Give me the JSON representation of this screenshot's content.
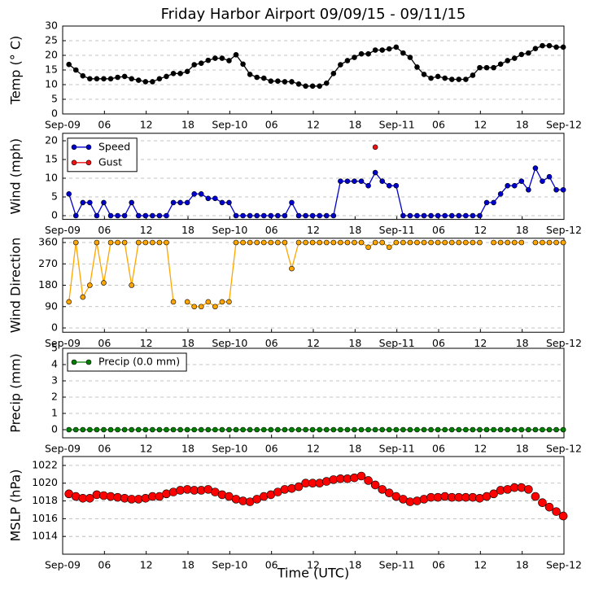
{
  "chart_data": [
    {
      "type": "line",
      "title": "Friday Harbor Airport 09/09/15 - 09/11/15",
      "ylabel": "Temp (° C)",
      "x": [
        0.9,
        1.9,
        2.9,
        3.9,
        4.9,
        5.9,
        6.9,
        7.9,
        8.9,
        9.9,
        10.9,
        11.9,
        12.9,
        13.9,
        14.9,
        15.9,
        16.9,
        17.9,
        18.9,
        19.9,
        20.9,
        21.9,
        22.9,
        23.9,
        24.9,
        25.9,
        26.9,
        27.9,
        28.9,
        29.9,
        30.9,
        31.9,
        32.9,
        33.9,
        34.9,
        35.9,
        36.9,
        37.9,
        38.9,
        39.9,
        40.9,
        41.9,
        42.9,
        43.9,
        44.9,
        45.9,
        46.9,
        47.9,
        48.9,
        49.9,
        50.9,
        51.9,
        52.9,
        53.9,
        54.9,
        55.9,
        56.9,
        57.9,
        58.9,
        59.9,
        60.9,
        61.9,
        62.9,
        63.9,
        64.9,
        65.9,
        66.9,
        67.9,
        68.9,
        69.9,
        70.9,
        71.9
      ],
      "series": [
        {
          "color": "#000000",
          "line": true,
          "marker_size": 3,
          "values": [
            16.9,
            15,
            13,
            12,
            12,
            12,
            12,
            12.5,
            12.8,
            12,
            11.5,
            11,
            11,
            12,
            12.8,
            13.8,
            13.8,
            14.5,
            16.8,
            17.3,
            18.3,
            19,
            19,
            18.2,
            20.2,
            17,
            13.5,
            12.5,
            12.2,
            11.2,
            11.2,
            11,
            11,
            10.2,
            9.5,
            9.5,
            9.5,
            10.5,
            13.8,
            16.8,
            18.2,
            19.3,
            20.5,
            20.5,
            21.8,
            21.8,
            22.2,
            22.8,
            20.8,
            19.3,
            16,
            13.5,
            12.2,
            12.8,
            12.2,
            11.8,
            11.8,
            11.8,
            13.2,
            15.8,
            15.8,
            15.8,
            17,
            18.2,
            19,
            20.3,
            20.8,
            22.3,
            23.3,
            23.3,
            22.8,
            22.8
          ]
        }
      ],
      "xlim": [
        0,
        72
      ],
      "xticks": [
        {
          "value": 0,
          "label": "Sep-09"
        },
        {
          "value": 6,
          "label": "06"
        },
        12,
        18,
        {
          "value": 24,
          "label": "Sep-10"
        },
        {
          "value": 30,
          "label": "06"
        },
        {
          "value": 36,
          "label": "12"
        },
        {
          "value": 42,
          "label": "18"
        },
        {
          "value": 48,
          "label": "Sep-11"
        },
        {
          "value": 54,
          "label": "06"
        },
        {
          "value": 60,
          "label": "12"
        },
        {
          "value": 66,
          "label": "18"
        },
        {
          "value": 72,
          "label": "Sep-12"
        }
      ],
      "ylim": [
        0,
        30
      ],
      "yticks": [
        0,
        5,
        10,
        15,
        20,
        25,
        30
      ],
      "grid": "y"
    },
    {
      "type": "line",
      "ylabel": "Wind (mph)",
      "x": [
        0.9,
        1.9,
        2.9,
        3.9,
        4.9,
        5.9,
        6.9,
        7.9,
        8.9,
        9.9,
        10.9,
        11.9,
        12.9,
        13.9,
        14.9,
        15.9,
        16.9,
        17.9,
        18.9,
        19.9,
        20.9,
        21.9,
        22.9,
        23.9,
        24.9,
        25.9,
        26.9,
        27.9,
        28.9,
        29.9,
        30.9,
        31.9,
        32.9,
        33.9,
        34.9,
        35.9,
        36.9,
        37.9,
        38.9,
        39.9,
        40.9,
        41.9,
        42.9,
        43.9,
        44.9,
        45.9,
        46.9,
        47.9,
        48.9,
        49.9,
        50.9,
        51.9,
        52.9,
        53.9,
        54.9,
        55.9,
        56.9,
        57.9,
        58.9,
        59.9,
        60.9,
        61.9,
        62.9,
        63.9,
        64.9,
        65.9,
        66.9,
        67.9,
        68.9,
        69.9,
        70.9,
        71.9
      ],
      "series": [
        {
          "name": "Speed",
          "color": "#0000cc",
          "line": true,
          "marker_size": 3,
          "values": [
            5.8,
            0,
            3.5,
            3.5,
            0,
            3.5,
            0,
            0,
            0,
            3.5,
            0,
            0,
            0,
            0,
            0,
            3.5,
            3.5,
            3.5,
            5.8,
            5.8,
            4.6,
            4.6,
            3.5,
            3.5,
            0,
            0,
            0,
            0,
            0,
            0,
            0,
            0,
            3.5,
            0,
            0,
            0,
            0,
            0,
            0,
            9.2,
            9.2,
            9.2,
            9.2,
            8,
            11.5,
            9.2,
            8,
            8,
            0,
            0,
            0,
            0,
            0,
            0,
            0,
            0,
            0,
            0,
            0,
            0,
            3.5,
            3.5,
            5.8,
            8,
            8,
            9.2,
            6.9,
            12.7,
            9.2,
            10.4,
            6.9,
            6.9
          ]
        },
        {
          "name": "Gust",
          "color": "#ee1111",
          "line": false,
          "marker_size": 3,
          "values": [
            null,
            null,
            null,
            null,
            null,
            null,
            null,
            null,
            null,
            null,
            null,
            null,
            null,
            null,
            null,
            null,
            null,
            null,
            null,
            null,
            null,
            null,
            null,
            null,
            null,
            null,
            null,
            null,
            null,
            null,
            null,
            null,
            null,
            null,
            null,
            null,
            null,
            null,
            null,
            null,
            null,
            null,
            null,
            null,
            18.3,
            null,
            null,
            null,
            null,
            null,
            null,
            null,
            null,
            null,
            null,
            null,
            null,
            null,
            null,
            null,
            null,
            null,
            null,
            null,
            null,
            null,
            null,
            null,
            null,
            null,
            null,
            null
          ]
        }
      ],
      "legend": "upper left",
      "xlim": [
        0,
        72
      ],
      "xticks": [
        {
          "value": 0,
          "label": "Sep-09"
        },
        {
          "value": 6,
          "label": "06"
        },
        12,
        18,
        {
          "value": 24,
          "label": "Sep-10"
        },
        {
          "value": 30,
          "label": "06"
        },
        {
          "value": 36,
          "label": "12"
        },
        {
          "value": 42,
          "label": "18"
        },
        {
          "value": 48,
          "label": "Sep-11"
        },
        {
          "value": 54,
          "label": "06"
        },
        {
          "value": 60,
          "label": "12"
        },
        {
          "value": 66,
          "label": "18"
        },
        {
          "value": 72,
          "label": "Sep-12"
        }
      ],
      "ylim": [
        -1,
        22
      ],
      "yticks": [
        0,
        5,
        10,
        15,
        20
      ],
      "grid": "y"
    },
    {
      "type": "line",
      "ylabel": "Wind Direction",
      "x": [
        0.9,
        1.9,
        2.9,
        3.9,
        4.9,
        5.9,
        6.9,
        7.9,
        8.9,
        9.9,
        10.9,
        11.9,
        12.9,
        13.9,
        14.9,
        15.9,
        16.9,
        17.9,
        18.9,
        19.9,
        20.9,
        21.9,
        22.9,
        23.9,
        24.9,
        25.9,
        26.9,
        27.9,
        28.9,
        29.9,
        30.9,
        31.9,
        32.9,
        33.9,
        34.9,
        35.9,
        36.9,
        37.9,
        38.9,
        39.9,
        40.9,
        41.9,
        42.9,
        43.9,
        44.9,
        45.9,
        46.9,
        47.9,
        48.9,
        49.9,
        50.9,
        51.9,
        52.9,
        53.9,
        54.9,
        55.9,
        56.9,
        57.9,
        58.9,
        59.9,
        60.9,
        61.9,
        62.9,
        63.9,
        64.9,
        65.9,
        66.9,
        67.9,
        68.9,
        69.9,
        70.9,
        71.9
      ],
      "series": [
        {
          "color": "#ffa500",
          "line": true,
          "marker_size": 3,
          "values": [
            110,
            360,
            130,
            180,
            360,
            190,
            360,
            360,
            360,
            180,
            360,
            360,
            360,
            360,
            360,
            110,
            null,
            110,
            90,
            90,
            110,
            90,
            110,
            110,
            360,
            360,
            360,
            360,
            360,
            360,
            360,
            360,
            250,
            360,
            360,
            360,
            360,
            360,
            360,
            360,
            360,
            360,
            360,
            340,
            360,
            360,
            340,
            360,
            360,
            360,
            360,
            360,
            360,
            360,
            360,
            360,
            360,
            360,
            360,
            360,
            null,
            360,
            360,
            360,
            360,
            360,
            null,
            360,
            360,
            360,
            360,
            360
          ]
        }
      ],
      "xlim": [
        0,
        72
      ],
      "xticks": [
        {
          "value": 0,
          "label": "Sep-09"
        },
        {
          "value": 6,
          "label": "06"
        },
        12,
        18,
        {
          "value": 24,
          "label": "Sep-10"
        },
        {
          "value": 30,
          "label": "06"
        },
        {
          "value": 36,
          "label": "12"
        },
        {
          "value": 42,
          "label": "18"
        },
        {
          "value": 48,
          "label": "Sep-11"
        },
        {
          "value": 54,
          "label": "06"
        },
        {
          "value": 60,
          "label": "12"
        },
        {
          "value": 66,
          "label": "18"
        },
        {
          "value": 72,
          "label": "Sep-12"
        }
      ],
      "ylim": [
        -18,
        378
      ],
      "yticks": [
        0,
        90,
        180,
        270,
        360
      ],
      "grid": "y"
    },
    {
      "type": "line",
      "ylabel": "Precip (mm)",
      "x": [
        0.9,
        1.9,
        2.9,
        3.9,
        4.9,
        5.9,
        6.9,
        7.9,
        8.9,
        9.9,
        10.9,
        11.9,
        12.9,
        13.9,
        14.9,
        15.9,
        16.9,
        17.9,
        18.9,
        19.9,
        20.9,
        21.9,
        22.9,
        23.9,
        24.9,
        25.9,
        26.9,
        27.9,
        28.9,
        29.9,
        30.9,
        31.9,
        32.9,
        33.9,
        34.9,
        35.9,
        36.9,
        37.9,
        38.9,
        39.9,
        40.9,
        41.9,
        42.9,
        43.9,
        44.9,
        45.9,
        46.9,
        47.9,
        48.9,
        49.9,
        50.9,
        51.9,
        52.9,
        53.9,
        54.9,
        55.9,
        56.9,
        57.9,
        58.9,
        59.9,
        60.9,
        61.9,
        62.9,
        63.9,
        64.9,
        65.9,
        66.9,
        67.9,
        68.9,
        69.9,
        70.9,
        71.9
      ],
      "series": [
        {
          "name": "Precip (0.0 mm)",
          "color": "#008000",
          "line": true,
          "marker_size": 3,
          "values": [
            0,
            0,
            0,
            0,
            0,
            0,
            0,
            0,
            0,
            0,
            0,
            0,
            0,
            0,
            0,
            0,
            0,
            0,
            0,
            0,
            0,
            0,
            0,
            0,
            0,
            0,
            0,
            0,
            0,
            0,
            0,
            0,
            0,
            0,
            0,
            0,
            0,
            0,
            0,
            0,
            0,
            0,
            0,
            0,
            0,
            0,
            0,
            0,
            0,
            0,
            0,
            0,
            0,
            0,
            0,
            0,
            0,
            0,
            0,
            0,
            0,
            0,
            0,
            0,
            0,
            0,
            0,
            0,
            0,
            0,
            0,
            0
          ]
        }
      ],
      "legend": "upper left",
      "xlim": [
        0,
        72
      ],
      "xticks": [
        {
          "value": 0,
          "label": "Sep-09"
        },
        {
          "value": 6,
          "label": "06"
        },
        12,
        18,
        {
          "value": 24,
          "label": "Sep-10"
        },
        {
          "value": 30,
          "label": "06"
        },
        {
          "value": 36,
          "label": "12"
        },
        {
          "value": 42,
          "label": "18"
        },
        {
          "value": 48,
          "label": "Sep-11"
        },
        {
          "value": 54,
          "label": "06"
        },
        {
          "value": 60,
          "label": "12"
        },
        {
          "value": 66,
          "label": "18"
        },
        {
          "value": 72,
          "label": "Sep-12"
        }
      ],
      "ylim": [
        -0.5,
        5
      ],
      "yticks": [
        0,
        1,
        2,
        3,
        4,
        5
      ],
      "grid": "y"
    },
    {
      "type": "scatter",
      "ylabel": "MSLP (hPa)",
      "xlabel": "Time (UTC)",
      "x": [
        0.9,
        1.9,
        2.9,
        3.9,
        4.9,
        5.9,
        6.9,
        7.9,
        8.9,
        9.9,
        10.9,
        11.9,
        12.9,
        13.9,
        14.9,
        15.9,
        16.9,
        17.9,
        18.9,
        19.9,
        20.9,
        21.9,
        22.9,
        23.9,
        24.9,
        25.9,
        26.9,
        27.9,
        28.9,
        29.9,
        30.9,
        31.9,
        32.9,
        33.9,
        34.9,
        35.9,
        36.9,
        37.9,
        38.9,
        39.9,
        40.9,
        41.9,
        42.9,
        43.9,
        44.9,
        45.9,
        46.9,
        47.9,
        48.9,
        49.9,
        50.9,
        51.9,
        52.9,
        53.9,
        54.9,
        55.9,
        56.9,
        57.9,
        58.9,
        59.9,
        60.9,
        61.9,
        62.9,
        63.9,
        64.9,
        65.9,
        66.9,
        67.9,
        68.9,
        69.9,
        70.9,
        71.9
      ],
      "series": [
        {
          "color": "#ff0000",
          "line": false,
          "marker_size": 5,
          "values": [
            1018.8,
            1018.5,
            1018.3,
            1018.3,
            1018.7,
            1018.6,
            1018.5,
            1018.4,
            1018.3,
            1018.2,
            1018.2,
            1018.3,
            1018.5,
            1018.5,
            1018.8,
            1019,
            1019.2,
            1019.3,
            1019.2,
            1019.2,
            1019.3,
            1019,
            1018.7,
            1018.5,
            1018.2,
            1018,
            1017.9,
            1018.2,
            1018.5,
            1018.7,
            1019,
            1019.3,
            1019.4,
            1019.6,
            1020,
            1020,
            1020,
            1020.2,
            1020.4,
            1020.5,
            1020.5,
            1020.6,
            1020.8,
            1020.3,
            1019.8,
            1019.3,
            1018.9,
            1018.5,
            1018.2,
            1017.9,
            1018,
            1018.2,
            1018.4,
            1018.4,
            1018.5,
            1018.4,
            1018.4,
            1018.4,
            1018.4,
            1018.3,
            1018.5,
            1018.8,
            1019.2,
            1019.3,
            1019.5,
            1019.5,
            1019.3,
            1018.5,
            1017.8,
            1017.3,
            1016.8,
            1016.3
          ]
        }
      ],
      "xlim": [
        0,
        72
      ],
      "xticks": [
        {
          "value": 0,
          "label": "Sep-09"
        },
        {
          "value": 6,
          "label": "06"
        },
        12,
        18,
        {
          "value": 24,
          "label": "Sep-10"
        },
        {
          "value": 30,
          "label": "06"
        },
        {
          "value": 36,
          "label": "12"
        },
        {
          "value": 42,
          "label": "18"
        },
        {
          "value": 48,
          "label": "Sep-11"
        },
        {
          "value": 54,
          "label": "06"
        },
        {
          "value": 60,
          "label": "12"
        },
        {
          "value": 66,
          "label": "18"
        },
        {
          "value": 72,
          "label": "Sep-12"
        }
      ],
      "ylim": [
        1012,
        1023
      ],
      "yticks": [
        1014,
        1016,
        1018,
        1020,
        1022
      ],
      "grid": "y"
    }
  ]
}
